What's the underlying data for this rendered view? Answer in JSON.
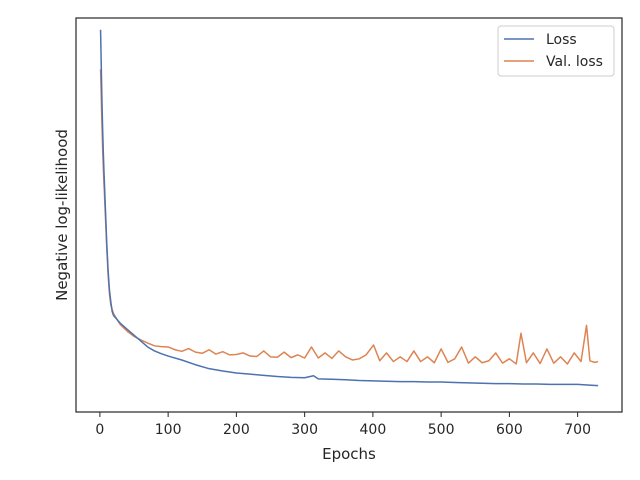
{
  "chart_data": {
    "type": "line",
    "title": "",
    "xlabel": "Epochs",
    "ylabel": "Negative log-likelihood",
    "xlim": [
      -35,
      765
    ],
    "ylim": [
      0,
      1
    ],
    "x_ticks": [
      0,
      100,
      200,
      300,
      400,
      500,
      600,
      700
    ],
    "y_ticks": [],
    "grid": false,
    "legend_position": "top-right",
    "series": [
      {
        "name": "Loss",
        "color": "#4c72b0",
        "x": [
          1,
          2,
          3,
          4,
          5,
          6,
          8,
          10,
          12,
          14,
          16,
          18,
          20,
          25,
          30,
          40,
          50,
          60,
          70,
          80,
          90,
          100,
          120,
          140,
          160,
          180,
          200,
          220,
          240,
          260,
          280,
          300,
          313,
          320,
          340,
          360,
          380,
          400,
          420,
          440,
          460,
          480,
          500,
          520,
          540,
          560,
          580,
          600,
          620,
          640,
          660,
          680,
          700,
          720,
          730
        ],
        "values": [
          0.97,
          0.88,
          0.79,
          0.72,
          0.66,
          0.61,
          0.52,
          0.43,
          0.36,
          0.31,
          0.28,
          0.255,
          0.245,
          0.235,
          0.225,
          0.21,
          0.195,
          0.18,
          0.165,
          0.155,
          0.148,
          0.142,
          0.132,
          0.12,
          0.11,
          0.104,
          0.099,
          0.096,
          0.093,
          0.09,
          0.088,
          0.087,
          0.092,
          0.084,
          0.083,
          0.082,
          0.08,
          0.079,
          0.078,
          0.077,
          0.077,
          0.076,
          0.076,
          0.075,
          0.074,
          0.073,
          0.072,
          0.072,
          0.071,
          0.071,
          0.07,
          0.07,
          0.07,
          0.068,
          0.067
        ]
      },
      {
        "name": "Val. loss",
        "color": "#dd8452",
        "x": [
          1,
          2,
          3,
          4,
          5,
          6,
          8,
          10,
          12,
          14,
          16,
          18,
          20,
          25,
          30,
          40,
          50,
          60,
          70,
          80,
          90,
          100,
          110,
          120,
          130,
          140,
          150,
          160,
          170,
          180,
          190,
          200,
          210,
          220,
          230,
          240,
          250,
          260,
          270,
          280,
          290,
          300,
          310,
          320,
          330,
          340,
          350,
          360,
          370,
          380,
          390,
          401,
          410,
          420,
          430,
          440,
          450,
          460,
          470,
          480,
          490,
          500,
          510,
          520,
          530,
          540,
          550,
          560,
          570,
          580,
          590,
          600,
          610,
          617,
          625,
          635,
          645,
          655,
          665,
          675,
          685,
          695,
          705,
          713,
          718,
          725,
          730
        ],
        "values": [
          0.87,
          0.8,
          0.73,
          0.67,
          0.62,
          0.58,
          0.5,
          0.42,
          0.35,
          0.3,
          0.272,
          0.26,
          0.25,
          0.235,
          0.222,
          0.205,
          0.192,
          0.183,
          0.175,
          0.168,
          0.166,
          0.165,
          0.158,
          0.154,
          0.161,
          0.152,
          0.149,
          0.158,
          0.147,
          0.153,
          0.145,
          0.146,
          0.15,
          0.142,
          0.141,
          0.155,
          0.14,
          0.139,
          0.152,
          0.138,
          0.145,
          0.137,
          0.165,
          0.137,
          0.15,
          0.136,
          0.155,
          0.14,
          0.132,
          0.135,
          0.145,
          0.17,
          0.13,
          0.15,
          0.128,
          0.14,
          0.128,
          0.155,
          0.128,
          0.14,
          0.125,
          0.16,
          0.126,
          0.135,
          0.165,
          0.124,
          0.14,
          0.125,
          0.13,
          0.15,
          0.124,
          0.135,
          0.122,
          0.2,
          0.125,
          0.15,
          0.123,
          0.16,
          0.124,
          0.14,
          0.122,
          0.15,
          0.128,
          0.22,
          0.13,
          0.126,
          0.128
        ]
      }
    ]
  }
}
